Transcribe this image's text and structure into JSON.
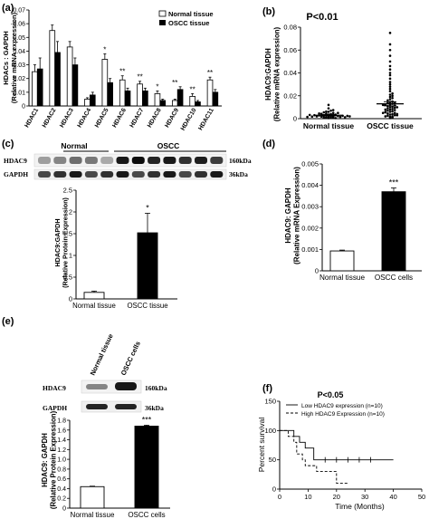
{
  "panels": {
    "a": {
      "label": "(a)",
      "legend": [
        "Normal tissue",
        "OSCC tissue"
      ]
    },
    "b": {
      "label": "(b)",
      "pvalue": "P<0.01"
    },
    "c": {
      "label": "(c)",
      "blot": {
        "groups": [
          "Normal",
          "OSCC"
        ],
        "rows": [
          "HDAC9",
          "GAPDH"
        ],
        "sizes": [
          "160kDa",
          "36kDa"
        ]
      }
    },
    "d": {
      "label": "(d)"
    },
    "e": {
      "label": "(e)",
      "blot": {
        "lanes": [
          "Normal tissue",
          "OSCC cells"
        ],
        "rows": [
          "HDAC9",
          "GAPDH"
        ],
        "sizes": [
          "160kDa",
          "36kDa"
        ]
      }
    },
    "f": {
      "label": "(f)",
      "pvalue": "P<0.05"
    }
  },
  "chart_data": [
    {
      "id": "a",
      "type": "bar",
      "ylabel": [
        "HDACs : GAPDH",
        "(Relative mRNA expression)"
      ],
      "ylim": [
        0,
        0.07
      ],
      "yticks": [
        "0",
        "0.01",
        "0.02",
        "0.03",
        "0.04",
        "0.05",
        "0.06",
        "0.07"
      ],
      "categories": [
        "HDAC1",
        "HDAC2",
        "HDAC3",
        "HDAC4",
        "HDAC5",
        "HDAC6",
        "HDAC7",
        "HDAC8",
        "HDAC9",
        "HDAC10",
        "HDAC11"
      ],
      "series": [
        {
          "name": "Normal tissue",
          "values": [
            0.025,
            0.055,
            0.043,
            0.005,
            0.034,
            0.019,
            0.016,
            0.009,
            0.004,
            0.007,
            0.019
          ],
          "errors": [
            0.005,
            0.004,
            0.004,
            0.001,
            0.004,
            0.003,
            0.002,
            0.002,
            0.001,
            0.002,
            0.002
          ]
        },
        {
          "name": "OSCC tissue",
          "values": [
            0.027,
            0.039,
            0.03,
            0.008,
            0.017,
            0.011,
            0.011,
            0.004,
            0.012,
            0.003,
            0.01
          ],
          "errors": [
            0.008,
            0.008,
            0.005,
            0.002,
            0.003,
            0.002,
            0.002,
            0.001,
            0.002,
            0.001,
            0.002
          ]
        }
      ],
      "annotations": [
        "",
        "",
        "",
        "",
        "*",
        "**",
        "**",
        "*",
        "**",
        "**",
        "**"
      ]
    },
    {
      "id": "b",
      "type": "scatter",
      "ylabel": [
        "HDAC9:GAPDH",
        "(Relative mRNA expression)"
      ],
      "ylim": [
        0,
        0.08
      ],
      "yticks": [
        "0",
        "0.02",
        "0.04",
        "0.06",
        "0.08"
      ],
      "categories": [
        "Normal tissue",
        "OSCC tissue"
      ],
      "series": [
        {
          "name": "Normal tissue",
          "mean": 0.003,
          "sem": 0.0006,
          "values": [
            0.0005,
            0.001,
            0.0015,
            0.002,
            0.0008,
            0.0012,
            0.002,
            0.0025,
            0.003,
            0.001,
            0.0018,
            0.0022,
            0.0028,
            0.0035,
            0.004,
            0.0045,
            0.005,
            0.0055,
            0.006,
            0.007,
            0.0008,
            0.0015,
            0.002,
            0.0025,
            0.003,
            0.0035,
            0.0042,
            0.005,
            0.0062,
            0.0075,
            0.009,
            0.012,
            0.0005,
            0.0012,
            0.0018,
            0.0024,
            0.0032,
            0.0045,
            0.002,
            0.0015
          ]
        },
        {
          "name": "OSCC tissue",
          "mean": 0.013,
          "sem": 0.0018,
          "values": [
            0.0005,
            0.001,
            0.0015,
            0.002,
            0.0025,
            0.003,
            0.0035,
            0.004,
            0.0045,
            0.005,
            0.0055,
            0.006,
            0.0065,
            0.007,
            0.0075,
            0.008,
            0.0085,
            0.009,
            0.0095,
            0.01,
            0.0105,
            0.011,
            0.0115,
            0.012,
            0.0125,
            0.013,
            0.0135,
            0.014,
            0.0145,
            0.015,
            0.016,
            0.017,
            0.018,
            0.019,
            0.02,
            0.021,
            0.022,
            0.024,
            0.026,
            0.028,
            0.03,
            0.032,
            0.035,
            0.038,
            0.04,
            0.043,
            0.046,
            0.05,
            0.055,
            0.06,
            0.065,
            0.075,
            0.002,
            0.004,
            0.006,
            0.008,
            0.01,
            0.012,
            0.005,
            0.003
          ]
        }
      ]
    },
    {
      "id": "c",
      "type": "bar",
      "ylabel": [
        "HDAC9:GAPDH",
        "(Relative Protein Expression)"
      ],
      "ylim": [
        0,
        2.5
      ],
      "yticks": [
        "0",
        "0.5",
        "1",
        "1.5",
        "2",
        "2.5"
      ],
      "categories": [
        "Normal tissue",
        "OSCC tissue"
      ],
      "values": [
        0.15,
        1.52
      ],
      "errors": [
        0.03,
        0.45
      ],
      "annotations": [
        "",
        "*"
      ]
    },
    {
      "id": "d",
      "type": "bar",
      "ylabel": [
        "HDAC9: GAPDH",
        "(Relative mRNA Expression)"
      ],
      "ylim": [
        0,
        0.005
      ],
      "yticks": [
        "0",
        "0.001",
        "0.002",
        "0.003",
        "0.004",
        "0.005"
      ],
      "categories": [
        "Normal tissue",
        "OSCC cells"
      ],
      "values": [
        0.00093,
        0.0037
      ],
      "errors": [
        4e-05,
        0.00018
      ],
      "annotations": [
        "",
        "***"
      ]
    },
    {
      "id": "e",
      "type": "bar",
      "ylabel": [
        "HDAC9: GAPDH",
        "(Relative Protein Expression)"
      ],
      "ylim": [
        0,
        1.8
      ],
      "yticks": [
        "0",
        "0.2",
        "0.4",
        "0.6",
        "0.8",
        "1.0",
        "1.2",
        "1.4",
        "1.6",
        "1.8"
      ],
      "categories": [
        "Normal tissue",
        "OSCC cells"
      ],
      "values": [
        0.44,
        1.68
      ],
      "errors": [
        0.01,
        0.02
      ],
      "annotations": [
        "",
        "***"
      ]
    },
    {
      "id": "f",
      "type": "line",
      "ylabel": "Percent survival",
      "xlabel": "Time (Months)",
      "ylim": [
        0,
        150
      ],
      "xlim": [
        0,
        50
      ],
      "yticks": [
        "0",
        "50",
        "100",
        "150"
      ],
      "xticks": [
        "0",
        "10",
        "20",
        "30",
        "40",
        "50"
      ],
      "series": [
        {
          "name": "Low HDAC9 expression (n=10)",
          "x": [
            0,
            5,
            5,
            7,
            7,
            9,
            9,
            12,
            12,
            40
          ],
          "y": [
            100,
            100,
            90,
            90,
            80,
            80,
            70,
            70,
            50,
            50
          ]
        },
        {
          "name": "High HDAC9 Expression (n=10)",
          "x": [
            0,
            3,
            3,
            5,
            5,
            6,
            6,
            8,
            8,
            9,
            9,
            13,
            13,
            20,
            20,
            24
          ],
          "y": [
            100,
            100,
            90,
            90,
            80,
            80,
            60,
            60,
            50,
            50,
            40,
            40,
            30,
            30,
            10,
            10
          ]
        }
      ]
    }
  ]
}
